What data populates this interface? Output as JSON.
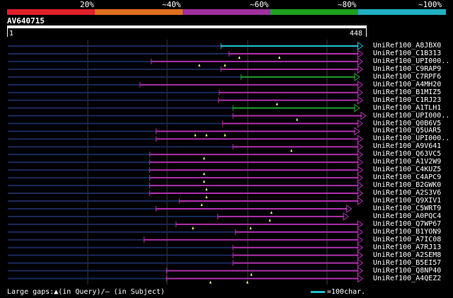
{
  "query": {
    "id": "AV640715",
    "start": "1",
    "end": "448"
  },
  "scale": {
    "segments": [
      {
        "color": "#e0202a"
      },
      {
        "color": "#e07020"
      },
      {
        "color": "#a030a0"
      },
      {
        "color": "#20a020"
      },
      {
        "color": "#20b0c0"
      }
    ],
    "labels": [
      "20%",
      "~40%",
      "~60%",
      "~80%",
      "~100%"
    ]
  },
  "colors": {
    "purple": "#b030b0",
    "green": "#20a030",
    "cyan": "#20c0d0",
    "gap": "#1a2a5a",
    "grid": "#3a3a3a",
    "marker": "#ffff80"
  },
  "hits": [
    {
      "label": "UniRef100_A8JBX0",
      "start": 267,
      "end": 444,
      "color": "cyan",
      "markers": []
    },
    {
      "label": "UniRef100_C1B313",
      "start": 277,
      "end": 444,
      "color": "purple",
      "markers": [
        290,
        340
      ]
    },
    {
      "label": "UniRef100_UPI000..",
      "start": 180,
      "end": 444,
      "color": "purple",
      "markers": [
        240,
        272
      ]
    },
    {
      "label": "UniRef100_C9RAP9",
      "start": 267,
      "end": 444,
      "color": "purple",
      "markers": []
    },
    {
      "label": "UniRef100_C7RPF6",
      "start": 292,
      "end": 440,
      "color": "green",
      "markers": []
    },
    {
      "label": "UniRef100_A4MH20",
      "start": 166,
      "end": 444,
      "color": "purple",
      "markers": []
    },
    {
      "label": "UniRef100_B1MIZ5",
      "start": 265,
      "end": 444,
      "color": "purple",
      "markers": []
    },
    {
      "label": "UniRef100_C1RJ23",
      "start": 264,
      "end": 444,
      "color": "purple",
      "markers": [
        337
      ]
    },
    {
      "label": "UniRef100_A1TLH1",
      "start": 282,
      "end": 440,
      "color": "green",
      "markers": []
    },
    {
      "label": "UniRef100_UPI000..",
      "start": 282,
      "end": 448,
      "color": "purple",
      "markers": [
        362
      ]
    },
    {
      "label": "UniRef100_Q0B6V5",
      "start": 269,
      "end": 444,
      "color": "purple",
      "markers": []
    },
    {
      "label": "UniRef100_Q5UAR5",
      "start": 186,
      "end": 440,
      "color": "purple",
      "markers": [
        235,
        249,
        272
      ]
    },
    {
      "label": "UniRef100_UPI000..",
      "start": 186,
      "end": 444,
      "color": "purple",
      "markers": []
    },
    {
      "label": "UniRef100_A9V641",
      "start": 282,
      "end": 444,
      "color": "purple",
      "markers": [
        355
      ]
    },
    {
      "label": "UniRef100_Q63VC5",
      "start": 178,
      "end": 444,
      "color": "purple",
      "markers": [
        246
      ]
    },
    {
      "label": "UniRef100_A1V2W9",
      "start": 178,
      "end": 444,
      "color": "purple",
      "markers": []
    },
    {
      "label": "UniRef100_C4KUZ5",
      "start": 178,
      "end": 444,
      "color": "purple",
      "markers": [
        246
      ]
    },
    {
      "label": "UniRef100_C4APC9",
      "start": 178,
      "end": 444,
      "color": "purple",
      "markers": [
        246
      ]
    },
    {
      "label": "UniRef100_B2GWK0",
      "start": 178,
      "end": 444,
      "color": "purple",
      "markers": [
        249
      ]
    },
    {
      "label": "UniRef100_A2S3V6",
      "start": 178,
      "end": 444,
      "color": "purple",
      "markers": [
        249
      ]
    },
    {
      "label": "UniRef100_Q9XIV1",
      "start": 215,
      "end": 444,
      "color": "purple",
      "markers": [
        243
      ]
    },
    {
      "label": "UniRef100_C5WRT9",
      "start": 186,
      "end": 430,
      "color": "purple",
      "markers": [
        330
      ]
    },
    {
      "label": "UniRef100_A0PQC4",
      "start": 263,
      "end": 426,
      "color": "purple",
      "markers": [
        328
      ]
    },
    {
      "label": "UniRef100_Q7WP67",
      "start": 211,
      "end": 444,
      "color": "purple",
      "markers": [
        232,
        304
      ]
    },
    {
      "label": "UniRef100_B1YON9",
      "start": 285,
      "end": 444,
      "color": "purple",
      "markers": []
    },
    {
      "label": "UniRef100_A7IC08",
      "start": 171,
      "end": 444,
      "color": "purple",
      "markers": []
    },
    {
      "label": "UniRef100_A7RJ13",
      "start": 282,
      "end": 444,
      "color": "purple",
      "markers": []
    },
    {
      "label": "UniRef100_A2SEM8",
      "start": 282,
      "end": 444,
      "color": "purple",
      "markers": []
    },
    {
      "label": "UniRef100_B5EI57",
      "start": 282,
      "end": 444,
      "color": "purple",
      "markers": []
    },
    {
      "label": "UniRef100_Q8NP40",
      "start": 199,
      "end": 444,
      "color": "purple",
      "markers": [
        305
      ]
    },
    {
      "label": "UniRef100_A4QEZ2",
      "start": 199,
      "end": 444,
      "color": "purple",
      "markers": [
        254,
        300
      ]
    }
  ],
  "footer": {
    "gaps_text": "Large gaps:▲(in Query)/– (in Subject)",
    "scale_text": "=100char.",
    "scale_color": "#20c0d0"
  }
}
